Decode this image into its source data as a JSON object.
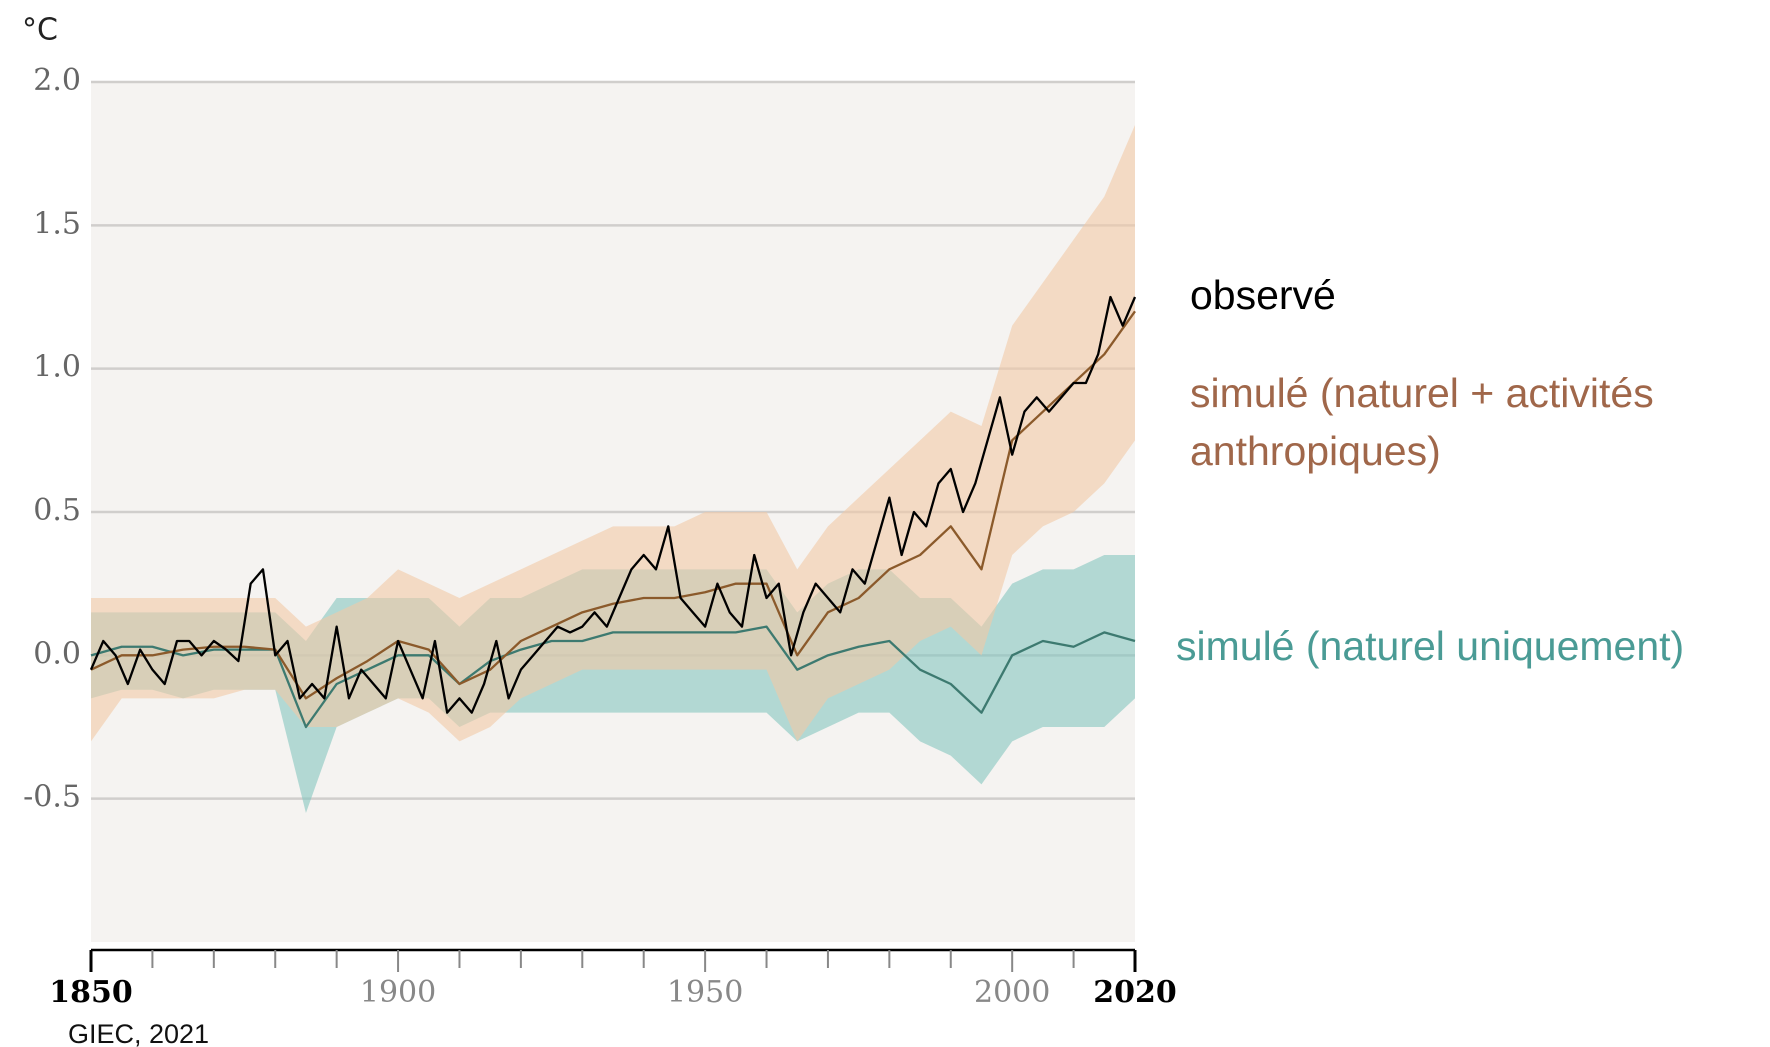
{
  "chart_data": {
    "type": "line",
    "y_unit": "°C",
    "source": "GIEC, 2021",
    "xlim": [
      1850,
      2020
    ],
    "xticks": [
      1850,
      1900,
      1950,
      2000,
      2020
    ],
    "xminor_ticks": [
      1860,
      1870,
      1880,
      1890,
      1910,
      1920,
      1930,
      1940,
      1960,
      1970,
      1980,
      1990,
      2010
    ],
    "ylim": [
      -1,
      2
    ],
    "yticks": [
      {
        "value": 2,
        "label": "2.0"
      },
      1.5,
      {
        "value": 1,
        "label": "1.0"
      },
      0.5,
      {
        "value": 0,
        "label": "0.0"
      },
      -0.5
    ],
    "grid": true,
    "series": [
      {
        "name": "simulé (naturel uniquement)",
        "color": "#3d7a70",
        "label_color": "#4a9b95",
        "band_color": "#86c6bf",
        "x": [
          1850,
          1855,
          1860,
          1865,
          1870,
          1875,
          1880,
          1885,
          1890,
          1895,
          1900,
          1905,
          1910,
          1915,
          1920,
          1925,
          1930,
          1935,
          1940,
          1945,
          1950,
          1955,
          1960,
          1965,
          1970,
          1975,
          1980,
          1985,
          1990,
          1995,
          2000,
          2005,
          2010,
          2015,
          2020
        ],
        "values": [
          0.0,
          0.03,
          0.03,
          0.0,
          0.02,
          0.02,
          0.02,
          -0.25,
          -0.1,
          -0.05,
          0.0,
          0.0,
          -0.1,
          -0.02,
          0.02,
          0.05,
          0.05,
          0.08,
          0.08,
          0.08,
          0.08,
          0.08,
          0.1,
          -0.05,
          0.0,
          0.03,
          0.05,
          -0.05,
          -0.1,
          -0.2,
          0.0,
          0.05,
          0.03,
          0.08,
          0.05
        ],
        "low": [
          -0.15,
          -0.12,
          -0.12,
          -0.15,
          -0.12,
          -0.12,
          -0.12,
          -0.55,
          -0.25,
          -0.2,
          -0.15,
          -0.15,
          -0.25,
          -0.2,
          -0.2,
          -0.2,
          -0.2,
          -0.2,
          -0.2,
          -0.2,
          -0.2,
          -0.2,
          -0.2,
          -0.3,
          -0.25,
          -0.2,
          -0.2,
          -0.3,
          -0.35,
          -0.45,
          -0.3,
          -0.25,
          -0.25,
          -0.25,
          -0.15
        ],
        "high": [
          0.15,
          0.15,
          0.15,
          0.15,
          0.15,
          0.15,
          0.15,
          0.05,
          0.2,
          0.2,
          0.2,
          0.2,
          0.1,
          0.2,
          0.2,
          0.25,
          0.3,
          0.3,
          0.3,
          0.3,
          0.3,
          0.3,
          0.3,
          0.15,
          0.25,
          0.3,
          0.3,
          0.2,
          0.2,
          0.1,
          0.25,
          0.3,
          0.3,
          0.35,
          0.35
        ]
      },
      {
        "name": "simulé (naturel + activités anthropiques)",
        "color": "#8b5a2b",
        "label_color": "#a0674a",
        "band_color": "#f2c9a6",
        "x": [
          1850,
          1855,
          1860,
          1865,
          1870,
          1875,
          1880,
          1885,
          1890,
          1895,
          1900,
          1905,
          1910,
          1915,
          1920,
          1925,
          1930,
          1935,
          1940,
          1945,
          1950,
          1955,
          1960,
          1965,
          1970,
          1975,
          1980,
          1985,
          1990,
          1995,
          2000,
          2005,
          2010,
          2015,
          2020
        ],
        "values": [
          -0.05,
          0.0,
          0.0,
          0.02,
          0.03,
          0.03,
          0.02,
          -0.15,
          -0.08,
          -0.02,
          0.05,
          0.02,
          -0.1,
          -0.05,
          0.05,
          0.1,
          0.15,
          0.18,
          0.2,
          0.2,
          0.22,
          0.25,
          0.25,
          0.0,
          0.15,
          0.2,
          0.3,
          0.35,
          0.45,
          0.3,
          0.75,
          0.85,
          0.95,
          1.05,
          1.2
        ],
        "low": [
          -0.3,
          -0.15,
          -0.15,
          -0.15,
          -0.15,
          -0.12,
          -0.12,
          -0.25,
          -0.25,
          -0.2,
          -0.15,
          -0.2,
          -0.3,
          -0.25,
          -0.15,
          -0.1,
          -0.05,
          -0.05,
          -0.05,
          -0.05,
          -0.05,
          -0.05,
          -0.05,
          -0.3,
          -0.15,
          -0.1,
          -0.05,
          0.05,
          0.1,
          0.0,
          0.35,
          0.45,
          0.5,
          0.6,
          0.75
        ],
        "high": [
          0.2,
          0.2,
          0.2,
          0.2,
          0.2,
          0.2,
          0.2,
          0.1,
          0.15,
          0.2,
          0.3,
          0.25,
          0.2,
          0.25,
          0.3,
          0.35,
          0.4,
          0.45,
          0.45,
          0.45,
          0.5,
          0.5,
          0.5,
          0.3,
          0.45,
          0.55,
          0.65,
          0.75,
          0.85,
          0.8,
          1.15,
          1.3,
          1.45,
          1.6,
          1.85
        ]
      },
      {
        "name": "observé",
        "color": "#000000",
        "label_color": "#000000",
        "x": [
          1850,
          1852,
          1854,
          1856,
          1858,
          1860,
          1862,
          1864,
          1866,
          1868,
          1870,
          1872,
          1874,
          1876,
          1878,
          1880,
          1882,
          1884,
          1886,
          1888,
          1890,
          1892,
          1894,
          1896,
          1898,
          1900,
          1902,
          1904,
          1906,
          1908,
          1910,
          1912,
          1914,
          1916,
          1918,
          1920,
          1922,
          1924,
          1926,
          1928,
          1930,
          1932,
          1934,
          1936,
          1938,
          1940,
          1942,
          1944,
          1946,
          1948,
          1950,
          1952,
          1954,
          1956,
          1958,
          1960,
          1962,
          1964,
          1966,
          1968,
          1970,
          1972,
          1974,
          1976,
          1978,
          1980,
          1982,
          1984,
          1986,
          1988,
          1990,
          1992,
          1994,
          1996,
          1998,
          2000,
          2002,
          2004,
          2006,
          2008,
          2010,
          2012,
          2014,
          2016,
          2018,
          2020
        ],
        "values": [
          -0.05,
          0.05,
          0.0,
          -0.1,
          0.02,
          -0.05,
          -0.1,
          0.05,
          0.05,
          0.0,
          0.05,
          0.02,
          -0.02,
          0.25,
          0.3,
          0.0,
          0.05,
          -0.15,
          -0.1,
          -0.15,
          0.1,
          -0.15,
          -0.05,
          -0.1,
          -0.15,
          0.05,
          -0.05,
          -0.15,
          0.05,
          -0.2,
          -0.15,
          -0.2,
          -0.1,
          0.05,
          -0.15,
          -0.05,
          0.0,
          0.05,
          0.1,
          0.08,
          0.1,
          0.15,
          0.1,
          0.2,
          0.3,
          0.35,
          0.3,
          0.45,
          0.2,
          0.15,
          0.1,
          0.25,
          0.15,
          0.1,
          0.35,
          0.2,
          0.25,
          0.0,
          0.15,
          0.25,
          0.2,
          0.15,
          0.3,
          0.25,
          0.4,
          0.55,
          0.35,
          0.5,
          0.45,
          0.6,
          0.65,
          0.5,
          0.6,
          0.75,
          0.9,
          0.7,
          0.85,
          0.9,
          0.85,
          0.9,
          0.95,
          0.95,
          1.05,
          1.25,
          1.15,
          1.25
        ]
      }
    ]
  }
}
